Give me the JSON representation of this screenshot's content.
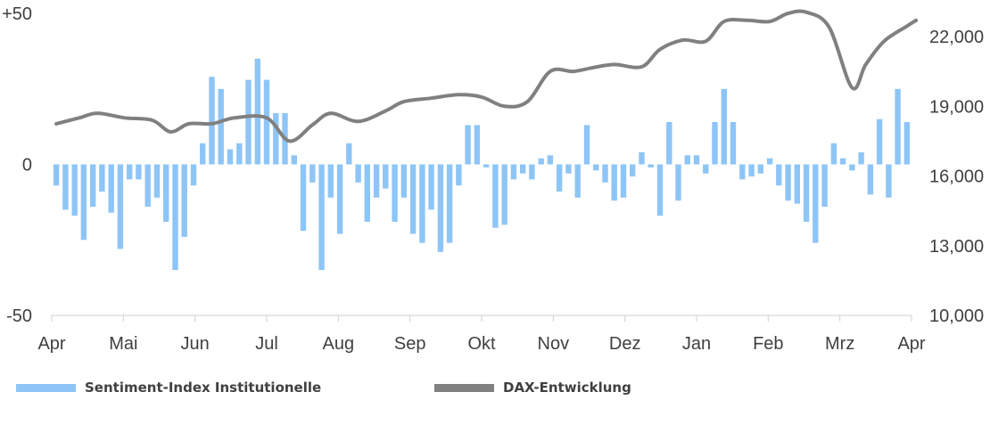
{
  "chart_data": {
    "type": "bar+line",
    "x_ticks": [
      "Apr",
      "Mai",
      "Jun",
      "Jul",
      "Aug",
      "Sep",
      "Okt",
      "Nov",
      "Dez",
      "Jan",
      "Feb",
      "Mrz",
      "Apr"
    ],
    "y_left_ticks": [
      "+50",
      "0",
      "-50"
    ],
    "y_left_lim": [
      -50,
      50
    ],
    "y_right_ticks": [
      "22,000",
      "19,000",
      "16,000",
      "13,000",
      "10,000"
    ],
    "y_right_lim": [
      10000,
      23000
    ],
    "grid": false,
    "legend_position": "bottom",
    "series": [
      {
        "name": "Sentiment-Index Institutionelle",
        "type": "bar",
        "axis": "left",
        "color": "#8EC5F7",
        "values": [
          -7,
          -15,
          -17,
          -25,
          -14,
          -9,
          -16,
          -28,
          -5,
          -5,
          -14,
          -11,
          -19,
          -35,
          -24,
          -7,
          7,
          29,
          25,
          5,
          7,
          28,
          35,
          28,
          17,
          17,
          3,
          -22,
          -6,
          -35,
          -11,
          -23,
          7,
          -6,
          -19,
          -11,
          -8,
          -19,
          -11,
          -23,
          -26,
          -15,
          -29,
          -26,
          -7,
          13,
          13,
          -1,
          -21,
          -20,
          -5,
          -3,
          -5,
          2,
          3,
          -9,
          -3,
          -11,
          13,
          -2,
          -6,
          -12,
          -11,
          -4,
          4,
          -1,
          -17,
          14,
          -12,
          3,
          3,
          -3,
          14,
          25,
          14,
          -5,
          -4,
          -3,
          2,
          -7,
          -12,
          -13,
          -19,
          -26,
          -14,
          7,
          2,
          -2,
          4,
          -10,
          15,
          -11,
          25,
          14
        ]
      },
      {
        "name": "DAX-Entwicklung",
        "type": "line",
        "axis": "right",
        "color": "#808080",
        "x": [
          0.0,
          2.5,
          4.5,
          7.5,
          10.5,
          12.5,
          14.5,
          17.0,
          19.5,
          23.0,
          25.5,
          28.0,
          30.0,
          33.0,
          36.0,
          38.0,
          41.0,
          44.0,
          46.5,
          49.0,
          51.5,
          54.0,
          56.5,
          58.5,
          61.0,
          64.0,
          66.0,
          68.5,
          71.0,
          73.0,
          75.5,
          78.0,
          80.0,
          82.0,
          84.5,
          87.0,
          88.5,
          90.5,
          93.0,
          94.0
        ],
        "values": [
          18250,
          18500,
          18700,
          18500,
          18400,
          17900,
          18250,
          18250,
          18500,
          18500,
          17500,
          18200,
          18700,
          18350,
          18800,
          19200,
          19350,
          19500,
          19400,
          19000,
          19200,
          20500,
          20500,
          20650,
          20800,
          20700,
          21450,
          21850,
          21800,
          22650,
          22700,
          22650,
          23000,
          23050,
          22400,
          19800,
          20800,
          21800,
          22450,
          22700
        ]
      }
    ]
  }
}
